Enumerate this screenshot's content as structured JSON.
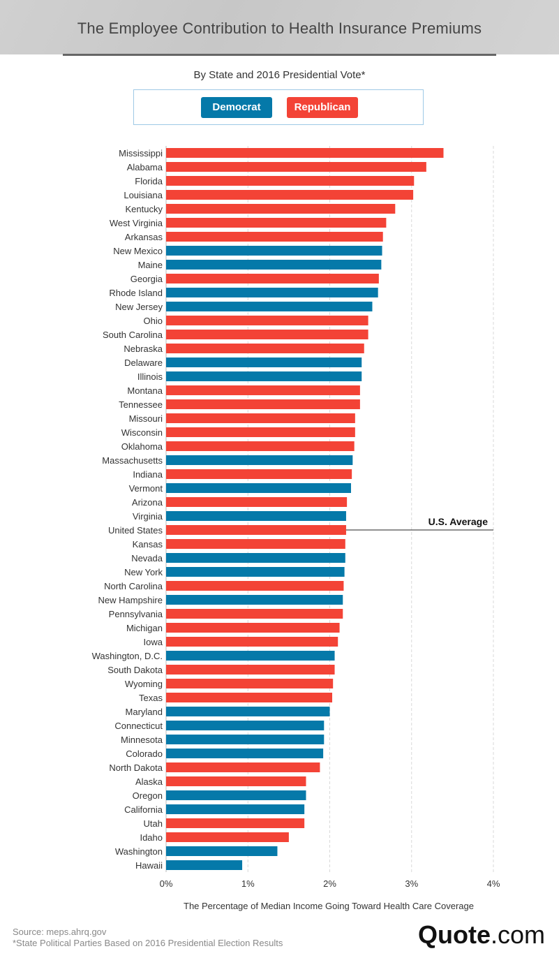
{
  "header": {
    "title": "The Employee Contribution to Health Insurance Premiums"
  },
  "subtitle": "By State and 2016 Presidential Vote*",
  "legend": {
    "democrat": {
      "label": "Democrat",
      "color": "#0579a9"
    },
    "republican": {
      "label": "Republican",
      "color": "#f34336"
    }
  },
  "chart_data": {
    "type": "bar",
    "orientation": "horizontal",
    "xlabel": "The Percentage of Median Income Going Toward Health Care Coverage",
    "xlim": [
      0,
      4
    ],
    "xticks": [
      "0%",
      "1%",
      "2%",
      "3%",
      "4%"
    ],
    "grid": "vertical dashed",
    "average_label": "U.S. Average",
    "average_category": "United States",
    "series": [
      {
        "name": "Democrat",
        "color": "#0579a9"
      },
      {
        "name": "Republican",
        "color": "#f34336"
      }
    ],
    "categories": [
      "Mississippi",
      "Alabama",
      "Florida",
      "Louisiana",
      "Kentucky",
      "West Virginia",
      "Arkansas",
      "New Mexico",
      "Maine",
      "Georgia",
      "Rhode Island",
      "New Jersey",
      "Ohio",
      "South Carolina",
      "Nebraska",
      "Delaware",
      "Illinois",
      "Montana",
      "Tennessee",
      "Missouri",
      "Wisconsin",
      "Oklahoma",
      "Massachusetts",
      "Indiana",
      "Vermont",
      "Arizona",
      "Virginia",
      "United States",
      "Kansas",
      "Nevada",
      "New York",
      "North Carolina",
      "New Hampshire",
      "Pennsylvania",
      "Michigan",
      "Iowa",
      "Washington, D.C.",
      "South Dakota",
      "Wyoming",
      "Texas",
      "Maryland",
      "Connecticut",
      "Minnesota",
      "Colorado",
      "North Dakota",
      "Alaska",
      "Oregon",
      "California",
      "Utah",
      "Idaho",
      "Washington",
      "Hawaii"
    ],
    "values": [
      3.39,
      3.18,
      3.03,
      3.02,
      2.8,
      2.69,
      2.65,
      2.64,
      2.63,
      2.6,
      2.59,
      2.52,
      2.47,
      2.47,
      2.42,
      2.39,
      2.39,
      2.37,
      2.37,
      2.31,
      2.31,
      2.3,
      2.28,
      2.27,
      2.26,
      2.21,
      2.2,
      2.2,
      2.19,
      2.19,
      2.18,
      2.17,
      2.16,
      2.16,
      2.12,
      2.1,
      2.06,
      2.06,
      2.04,
      2.03,
      2.0,
      1.93,
      1.93,
      1.92,
      1.88,
      1.71,
      1.71,
      1.69,
      1.69,
      1.5,
      1.36,
      0.93
    ],
    "party": [
      "R",
      "R",
      "R",
      "R",
      "R",
      "R",
      "R",
      "D",
      "D",
      "R",
      "D",
      "D",
      "R",
      "R",
      "R",
      "D",
      "D",
      "R",
      "R",
      "R",
      "R",
      "R",
      "D",
      "R",
      "D",
      "R",
      "D",
      "R",
      "R",
      "D",
      "D",
      "R",
      "D",
      "R",
      "R",
      "R",
      "D",
      "R",
      "R",
      "R",
      "D",
      "D",
      "D",
      "D",
      "R",
      "R",
      "D",
      "D",
      "R",
      "R",
      "D",
      "D"
    ]
  },
  "footer": {
    "source": "Source: meps.ahrq.gov",
    "note": "*State Political Parties Based on 2016 Presidential Election Results",
    "logo_bold": "Quote",
    "logo_rest": ".com"
  }
}
